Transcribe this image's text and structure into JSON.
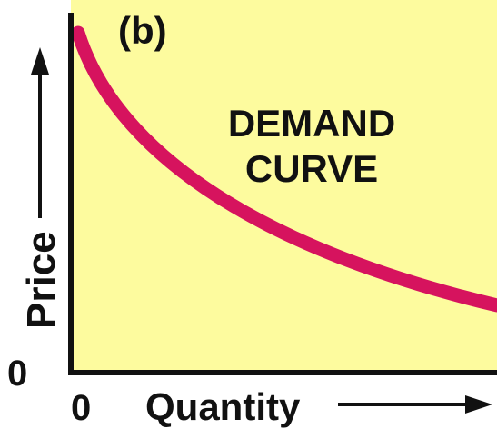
{
  "panel_label": "(b)",
  "curve_label": [
    "DEMAND",
    "CURVE"
  ],
  "y_axis": {
    "label": "Price",
    "origin": "0"
  },
  "x_axis": {
    "label": "Quantity",
    "origin": "0"
  }
}
